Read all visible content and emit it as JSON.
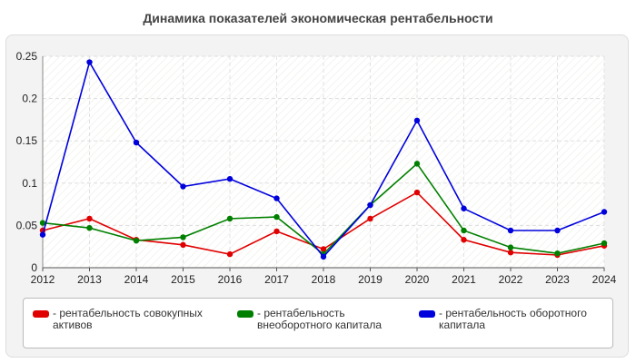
{
  "title": "Динамика показателей экономическая рентабельности",
  "chart_data": {
    "type": "line",
    "x": [
      "2012",
      "2013",
      "2014",
      "2015",
      "2016",
      "2017",
      "2018",
      "2019",
      "2020",
      "2021",
      "2022",
      "2023",
      "2024"
    ],
    "ylim": [
      0,
      0.25
    ],
    "yticks": [
      "0",
      "0.05",
      "0.1",
      "0.15",
      "0.2",
      "0.25"
    ],
    "grid": true,
    "legend_position": "bottom",
    "series": [
      {
        "name": "- рентабельность совокупных активов",
        "color": "#e00000",
        "values": [
          0.044,
          0.058,
          0.033,
          0.027,
          0.016,
          0.043,
          0.022,
          0.058,
          0.089,
          0.033,
          0.018,
          0.015,
          0.026
        ]
      },
      {
        "name": "- рентабельность внеоборотного капитала",
        "color": "#008000",
        "values": [
          0.053,
          0.047,
          0.032,
          0.036,
          0.058,
          0.06,
          0.016,
          0.074,
          0.123,
          0.044,
          0.024,
          0.017,
          0.029
        ]
      },
      {
        "name": "- рентабельность оборотного капитала",
        "color": "#0000dd",
        "values": [
          0.039,
          0.243,
          0.148,
          0.096,
          0.105,
          0.082,
          0.013,
          0.074,
          0.174,
          0.07,
          0.044,
          0.044,
          0.066
        ]
      }
    ]
  }
}
